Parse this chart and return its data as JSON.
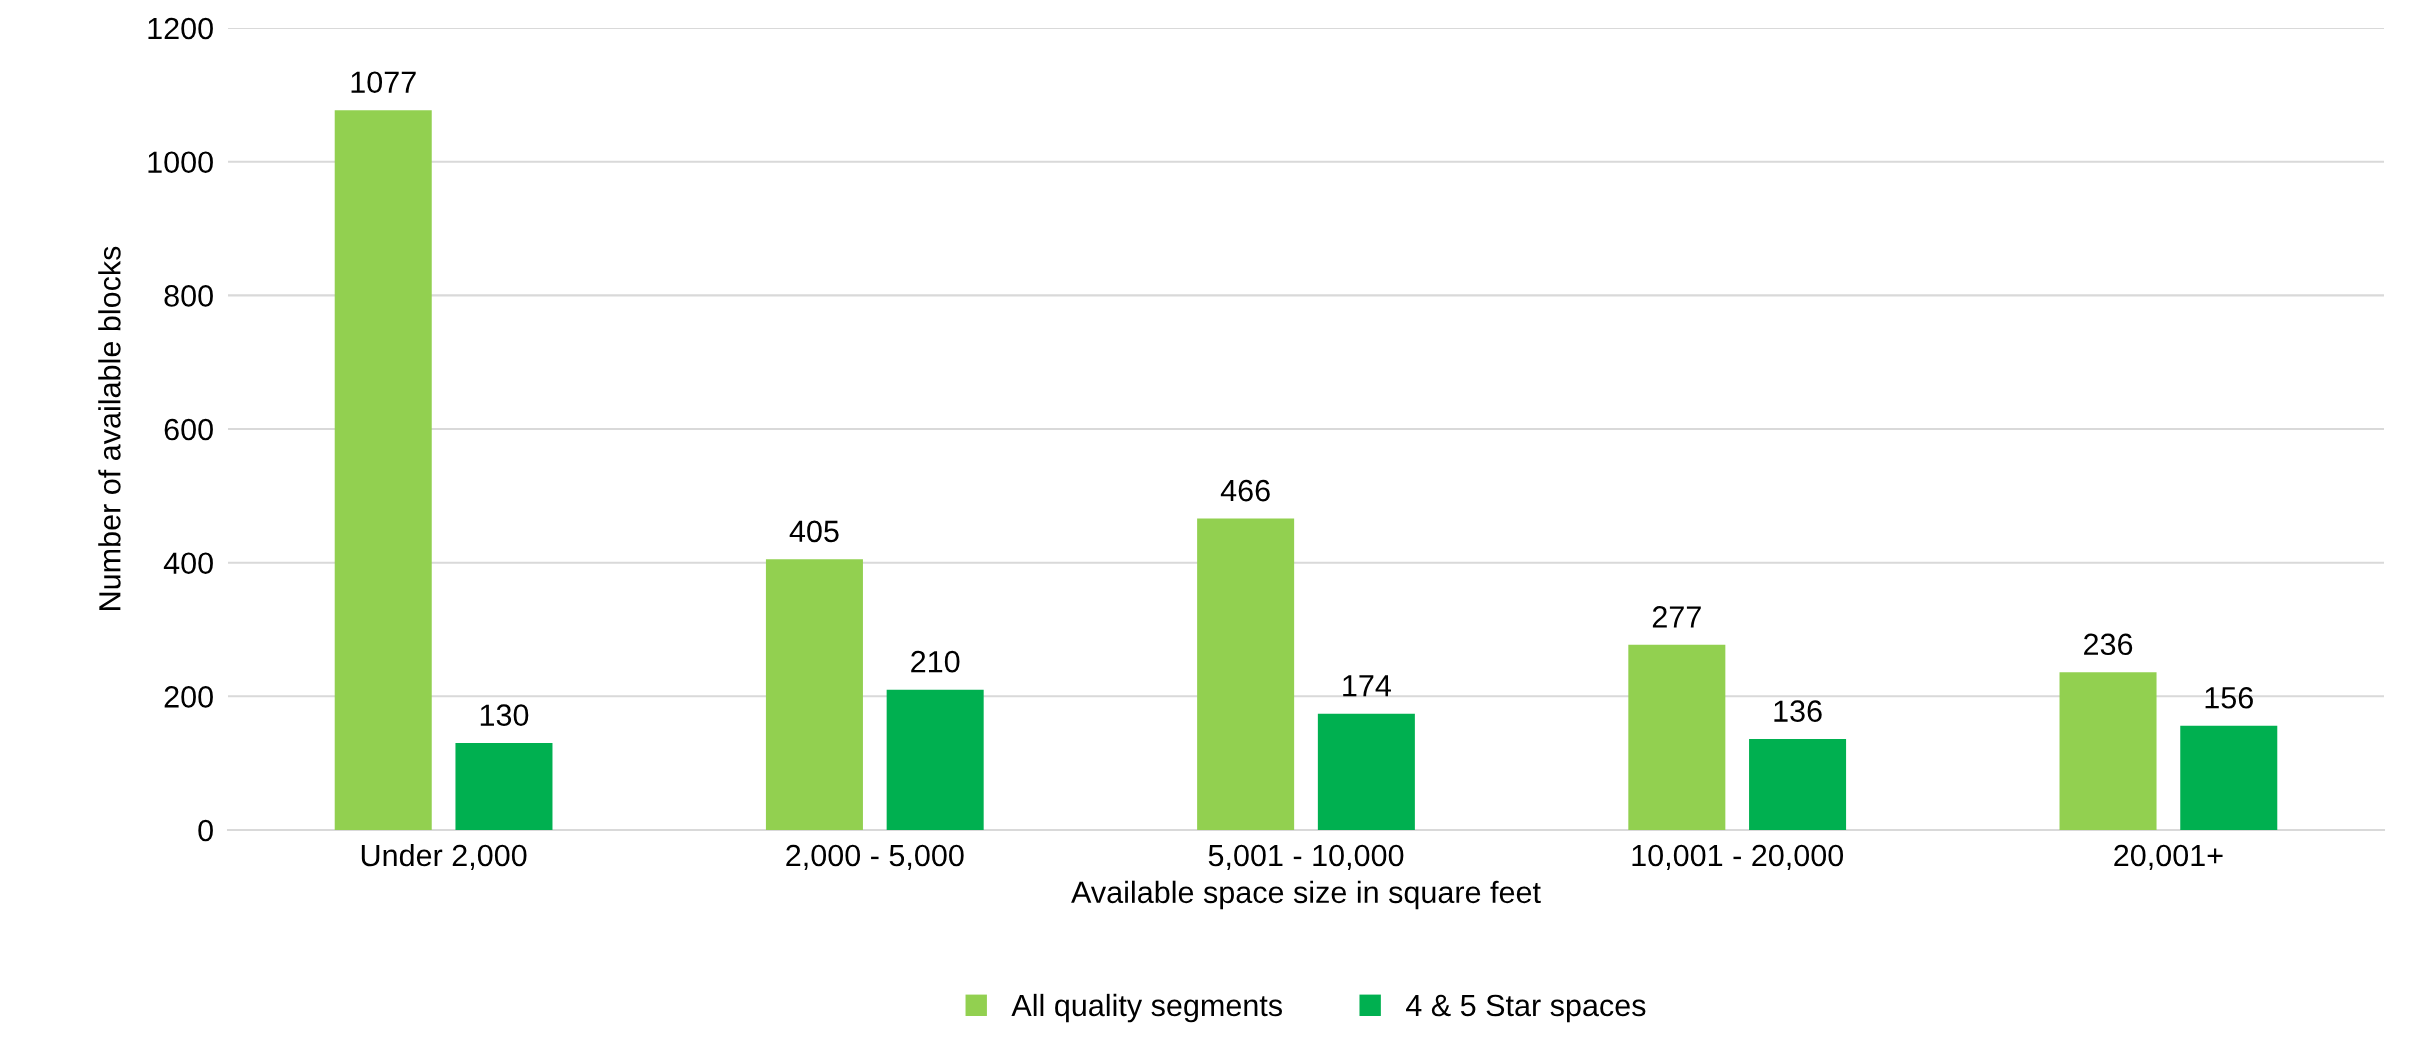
{
  "chart_data": {
    "type": "bar",
    "xlabel": "Available space size in square feet",
    "ylabel": "Number of available blocks",
    "categories": [
      "Under 2,000",
      "2,000 - 5,000",
      "5,001 - 10,000",
      "10,001 - 20,000",
      "20,001+"
    ],
    "series": [
      {
        "name": "All quality segments",
        "color": "#92d050",
        "values": [
          1077,
          405,
          466,
          277,
          236
        ]
      },
      {
        "name": "4 & 5 Star spaces",
        "color": "#00b050",
        "values": [
          130,
          210,
          174,
          136,
          156
        ]
      }
    ],
    "ylim": [
      0,
      1200
    ],
    "yticks": [
      0,
      200,
      400,
      600,
      800,
      1000,
      1200
    ],
    "grid": "y",
    "legend": "bottom",
    "data_labels": true
  }
}
